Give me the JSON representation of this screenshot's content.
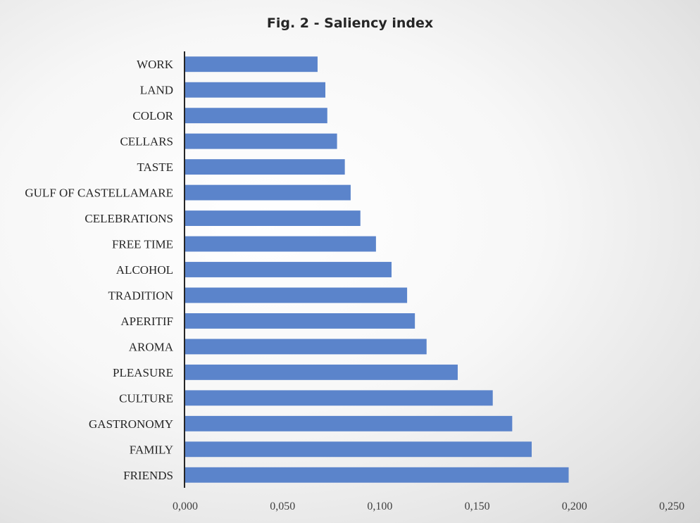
{
  "chart_data": {
    "type": "bar",
    "orientation": "horizontal",
    "title": "Fig. 2 - Saliency index",
    "xlabel": "",
    "ylabel": "",
    "categories": [
      "FRIENDS",
      "FAMILY",
      "GASTRONOMY",
      "CULTURE",
      "PLEASURE",
      "AROMA",
      "APERITIF",
      "TRADITION",
      "ALCOHOL",
      "FREE TIME",
      "CELEBRATIONS",
      "GULF OF CASTELLAMARE",
      "TASTE",
      "CELLARS",
      "COLOR",
      "LAND",
      "WORK"
    ],
    "values": [
      0.197,
      0.178,
      0.168,
      0.158,
      0.14,
      0.124,
      0.118,
      0.114,
      0.106,
      0.098,
      0.09,
      0.085,
      0.082,
      0.078,
      0.073,
      0.072,
      0.068
    ],
    "xlim": [
      0,
      0.25
    ],
    "xticks": [
      0,
      0.05,
      0.1,
      0.15,
      0.2,
      0.25
    ],
    "xtick_labels": [
      "0,000",
      "0,050",
      "0,100",
      "0,150",
      "0,200",
      "0,250"
    ],
    "grid": false,
    "legend": "none",
    "colors": {
      "bar": "#5b84cb",
      "axis": "#262626",
      "text": "#262626"
    }
  }
}
